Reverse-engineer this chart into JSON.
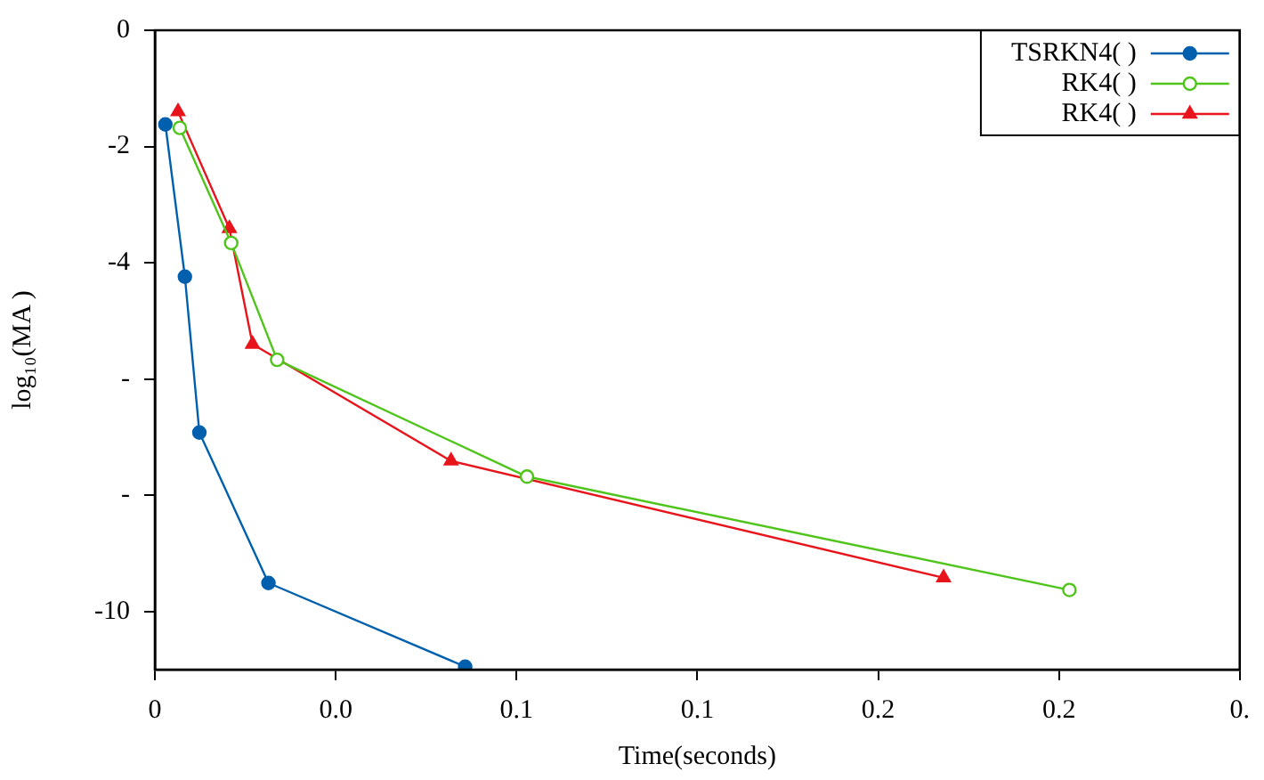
{
  "chart_data": {
    "type": "line",
    "xlabel": "Time(seconds)",
    "ylabel": "log₁₀(MA )",
    "xlim": [
      0,
      0.3
    ],
    "xticks": [
      {
        "value": 0,
        "label": "0"
      },
      {
        "value": 0.05,
        "label": "0.0"
      },
      {
        "value": 0.1,
        "label": "0.1"
      },
      {
        "value": 0.15,
        "label": "0.1"
      },
      {
        "value": 0.2,
        "label": "0.2"
      },
      {
        "value": 0.25,
        "label": "0.2"
      },
      {
        "value": 0.3,
        "label": "0."
      }
    ],
    "ylim": [
      -11,
      0
    ],
    "yticks": [
      0,
      -2,
      -4,
      {
        "value": -6,
        "label": "-"
      },
      {
        "value": -8,
        "label": "-"
      },
      -10
    ],
    "grid": false,
    "legend": "top right",
    "line_style": "solid",
    "series": [
      {
        "name": "TSRKN4( )",
        "color": "#0060ad",
        "marker": "circle",
        "x": [
          0.0029,
          0.0083,
          0.0123,
          0.0314,
          0.0858
        ],
        "values": [
          -1.62,
          -4.24,
          -6.92,
          -9.51,
          -10.95
        ]
      },
      {
        "name": "RK4( )",
        "color": "#4fc41a",
        "marker": "circle-open",
        "x": [
          0.0069,
          0.0211,
          0.0338,
          0.1029,
          0.2529
        ],
        "values": [
          -1.68,
          -3.66,
          -5.67,
          -7.68,
          -9.63
        ]
      },
      {
        "name": "RK4( )",
        "color": "#e8141c",
        "marker": "triangle",
        "x": [
          0.0064,
          0.0206,
          0.027,
          0.0819,
          0.2181
        ],
        "values": [
          -1.4,
          -3.41,
          -5.4,
          -7.41,
          -9.42
        ]
      }
    ]
  }
}
